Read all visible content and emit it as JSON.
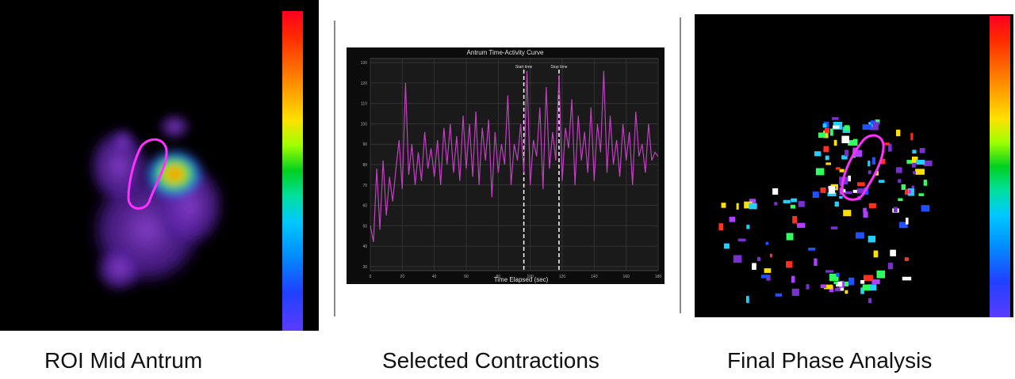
{
  "captions": {
    "left": "ROI Mid Antrum",
    "center": "Selected Contractions",
    "right": "Final Phase Analysis"
  },
  "chart_data": {
    "type": "line",
    "title": "Antrum Time-Activity Curve",
    "xlabel": "Time Elapsed (sec)",
    "ylabel": "",
    "grid": true,
    "series_color": "#c040c0",
    "annotations": [
      {
        "label": "Start time",
        "x": 96
      },
      {
        "label": "Stop time",
        "x": 118
      }
    ],
    "x": [
      0,
      2,
      4,
      6,
      8,
      10,
      12,
      14,
      16,
      18,
      20,
      22,
      24,
      26,
      28,
      30,
      32,
      34,
      36,
      38,
      40,
      42,
      44,
      46,
      48,
      50,
      52,
      54,
      56,
      58,
      60,
      62,
      64,
      66,
      68,
      70,
      72,
      74,
      76,
      78,
      80,
      82,
      84,
      86,
      88,
      90,
      92,
      94,
      96,
      98,
      100,
      102,
      104,
      106,
      108,
      110,
      112,
      114,
      116,
      118,
      120,
      122,
      124,
      126,
      128,
      130,
      132,
      134,
      136,
      138,
      140,
      142,
      144,
      146,
      148,
      150,
      152,
      154,
      156,
      158,
      160,
      162,
      164,
      166,
      168,
      170,
      172,
      174,
      176,
      178,
      180
    ],
    "y": [
      50,
      42,
      78,
      48,
      82,
      55,
      74,
      62,
      78,
      92,
      68,
      120,
      75,
      90,
      70,
      86,
      72,
      96,
      78,
      88,
      74,
      92,
      70,
      98,
      80,
      100,
      76,
      94,
      72,
      104,
      78,
      100,
      74,
      106,
      70,
      98,
      82,
      102,
      64,
      96,
      76,
      90,
      80,
      114,
      70,
      90,
      82,
      100,
      76,
      126,
      70,
      92,
      84,
      108,
      68,
      118,
      78,
      96,
      82,
      124,
      72,
      98,
      88,
      112,
      70,
      104,
      82,
      96,
      76,
      108,
      72,
      100,
      86,
      126,
      76,
      104,
      80,
      92,
      74,
      100,
      82,
      96,
      70,
      106,
      84,
      90,
      76,
      100,
      82,
      86,
      84
    ],
    "xticks": [
      0,
      20,
      40,
      60,
      80,
      100,
      120,
      140,
      160,
      180
    ],
    "yticks": [
      30,
      40,
      50,
      60,
      70,
      80,
      90,
      100,
      110,
      120,
      130
    ],
    "xlim": [
      0,
      180
    ],
    "ylim": [
      28,
      132
    ]
  }
}
